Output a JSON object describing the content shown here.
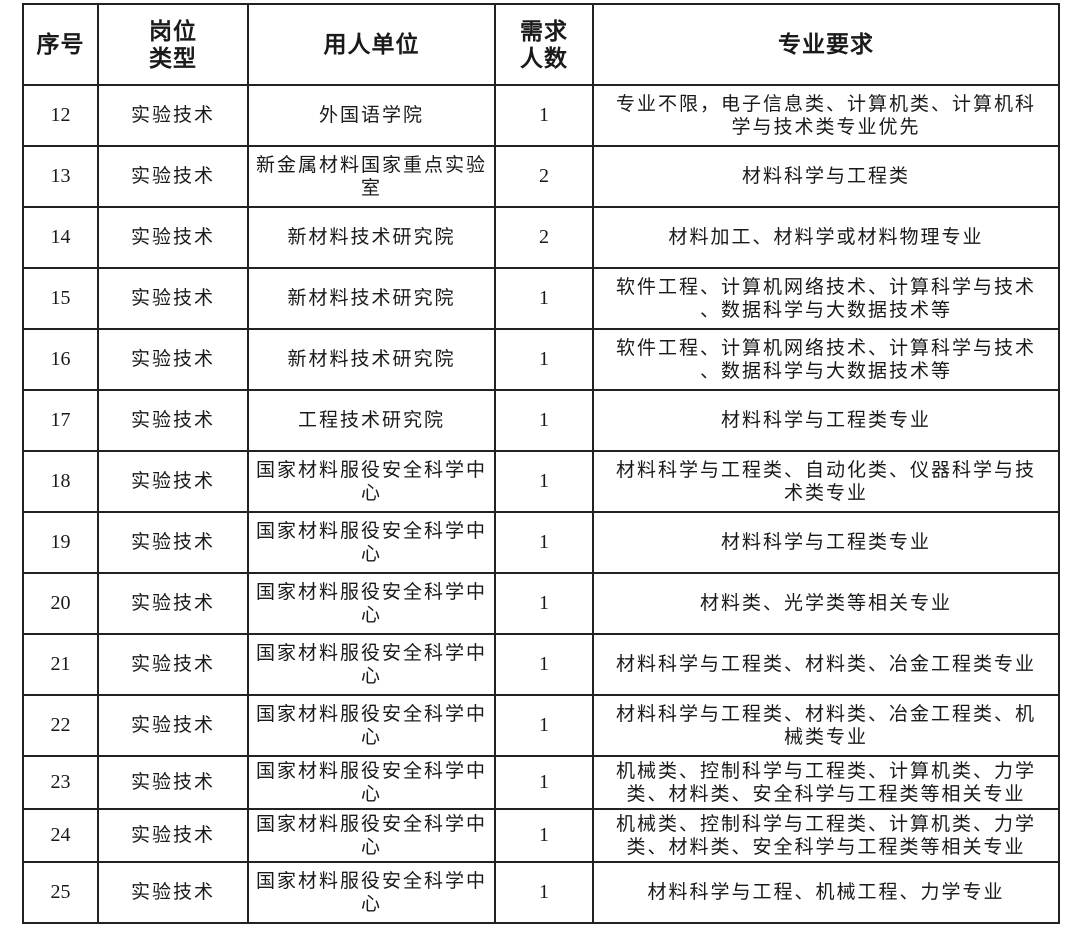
{
  "headers": {
    "index": "序号",
    "type": "岗位类型",
    "unit": "用人单位",
    "count": "需求人数",
    "major": "专业要求"
  },
  "rows": [
    {
      "index": "12",
      "type": "实验技术",
      "unit": "外国语学院",
      "count": "1",
      "major": "专业不限，电子信息类、计算机类、计算机科学与技术类专业优先"
    },
    {
      "index": "13",
      "type": "实验技术",
      "unit": "新金属材料国家重点实验室",
      "count": "2",
      "major": "材料科学与工程类"
    },
    {
      "index": "14",
      "type": "实验技术",
      "unit": "新材料技术研究院",
      "count": "2",
      "major": "材料加工、材料学或材料物理专业"
    },
    {
      "index": "15",
      "type": "实验技术",
      "unit": "新材料技术研究院",
      "count": "1",
      "major": "软件工程、计算机网络技术、计算科学与技术、数据科学与大数据技术等"
    },
    {
      "index": "16",
      "type": "实验技术",
      "unit": "新材料技术研究院",
      "count": "1",
      "major": "软件工程、计算机网络技术、计算科学与技术、数据科学与大数据技术等"
    },
    {
      "index": "17",
      "type": "实验技术",
      "unit": "工程技术研究院",
      "count": "1",
      "major": "材料科学与工程类专业"
    },
    {
      "index": "18",
      "type": "实验技术",
      "unit": "国家材料服役安全科学中心",
      "count": "1",
      "major": "材料科学与工程类、自动化类、仪器科学与技术类专业"
    },
    {
      "index": "19",
      "type": "实验技术",
      "unit": "国家材料服役安全科学中心",
      "count": "1",
      "major": "材料科学与工程类专业"
    },
    {
      "index": "20",
      "type": "实验技术",
      "unit": "国家材料服役安全科学中心",
      "count": "1",
      "major": "材料类、光学类等相关专业"
    },
    {
      "index": "21",
      "type": "实验技术",
      "unit": "国家材料服役安全科学中心",
      "count": "1",
      "major": "材料科学与工程类、材料类、冶金工程类专业"
    },
    {
      "index": "22",
      "type": "实验技术",
      "unit": "国家材料服役安全科学中心",
      "count": "1",
      "major": "材料科学与工程类、材料类、冶金工程类、机械类专业"
    },
    {
      "index": "23",
      "type": "实验技术",
      "unit": "国家材料服役安全科学中心",
      "count": "1",
      "major": "机械类、控制科学与工程类、计算机类、力学类、材料类、安全科学与工程类等相关专业"
    },
    {
      "index": "24",
      "type": "实验技术",
      "unit": "国家材料服役安全科学中心",
      "count": "1",
      "major": "机械类、控制科学与工程类、计算机类、力学类、材料类、安全科学与工程类等相关专业"
    },
    {
      "index": "25",
      "type": "实验技术",
      "unit": "国家材料服役安全科学中心",
      "count": "1",
      "major": "材料科学与工程、机械工程、力学专业"
    }
  ]
}
